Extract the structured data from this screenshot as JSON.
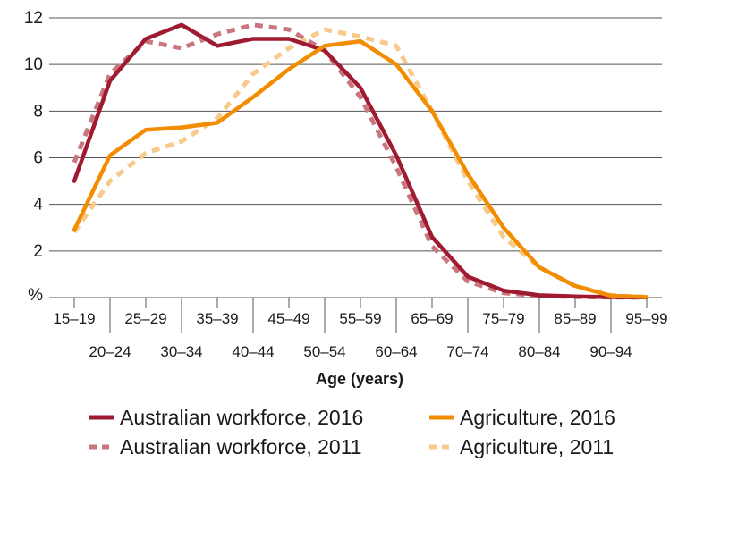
{
  "chart_data": {
    "type": "line",
    "xlabel": "Age (years)",
    "ylabel": "%",
    "ylim": [
      0,
      12
    ],
    "yticks": [
      2,
      4,
      6,
      8,
      10,
      12
    ],
    "grid": "horizontal",
    "legend_position": "bottom",
    "categories": [
      "15–19",
      "20–24",
      "25–29",
      "30–34",
      "35–39",
      "40–44",
      "45–49",
      "50–54",
      "55–59",
      "60–64",
      "65–69",
      "70–74",
      "75–79",
      "80–84",
      "85–89",
      "90–94",
      "95–99"
    ],
    "series": [
      {
        "name": "Australian workforce, 2016",
        "color": "#9e1b32",
        "style": "solid",
        "values": [
          5.0,
          9.3,
          11.1,
          11.7,
          10.8,
          11.1,
          11.1,
          10.6,
          9.0,
          6.1,
          2.6,
          0.9,
          0.3,
          0.1,
          0.05,
          0.02,
          0.01
        ]
      },
      {
        "name": "Agriculture, 2016",
        "color": "#f28c00",
        "style": "solid",
        "values": [
          2.9,
          6.1,
          7.2,
          7.3,
          7.5,
          8.6,
          9.8,
          10.8,
          11.0,
          10.0,
          8.0,
          5.3,
          3.0,
          1.3,
          0.5,
          0.08,
          0.02
        ]
      },
      {
        "name": "Australian workforce, 2011",
        "color": "#c9767e",
        "style": "dashed",
        "values": [
          5.8,
          9.6,
          11.0,
          10.7,
          11.3,
          11.7,
          11.5,
          10.6,
          8.6,
          5.6,
          2.2,
          0.7,
          0.2,
          0.08,
          0.03,
          0.01,
          0.01
        ]
      },
      {
        "name": "Agriculture, 2011",
        "color": "#f7c98a",
        "style": "dashed",
        "values": [
          2.8,
          5.0,
          6.2,
          6.7,
          7.7,
          9.6,
          10.7,
          11.5,
          11.2,
          10.8,
          8.0,
          5.0,
          2.6,
          1.3,
          0.5,
          0.1,
          0.02
        ]
      }
    ]
  }
}
